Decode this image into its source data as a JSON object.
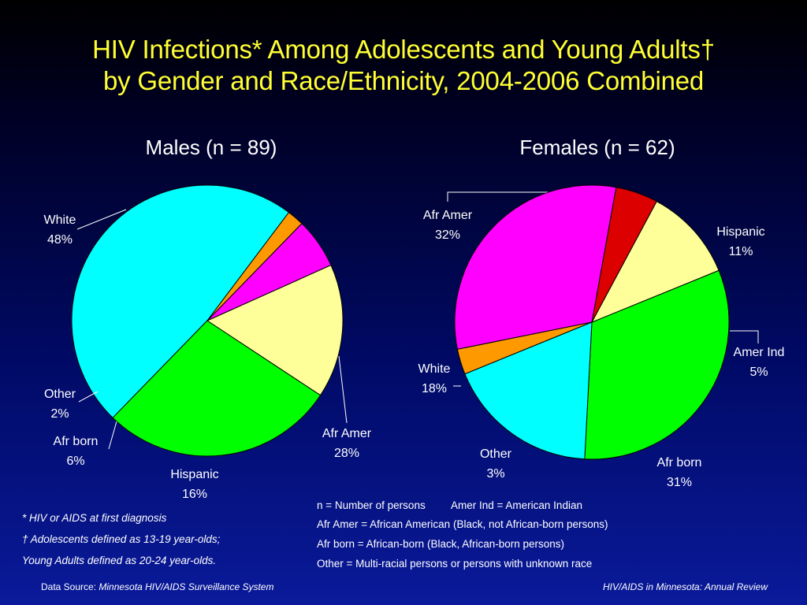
{
  "title": {
    "line1": "HIV Infections* Among Adolescents and Young Adults†",
    "line2": "by Gender and Race/Ethnicity, 2004-2006 Combined"
  },
  "chart_data": [
    {
      "type": "pie",
      "title": "Males (n = 89)",
      "slices": [
        {
          "label": "White",
          "value": 48,
          "value_label": "48%",
          "color": "#00ffff"
        },
        {
          "label": "Afr Amer",
          "value": 28,
          "value_label": "28%",
          "color": "#00ff00"
        },
        {
          "label": "Hispanic",
          "value": 16,
          "value_label": "16%",
          "color": "#ffff99"
        },
        {
          "label": "Afr born",
          "value": 6,
          "value_label": "6%",
          "color": "#ff00ff"
        },
        {
          "label": "Other",
          "value": 2,
          "value_label": "2%",
          "color": "#ff9900"
        }
      ]
    },
    {
      "type": "pie",
      "title": "Females (n = 62)",
      "slices": [
        {
          "label": "Afr Amer",
          "value": 32,
          "value_label": "32%",
          "color": "#00ff00"
        },
        {
          "label": "Hispanic",
          "value": 11,
          "value_label": "11%",
          "color": "#ffff99"
        },
        {
          "label": "Amer Ind",
          "value": 5,
          "value_label": "5%",
          "color": "#dd0000"
        },
        {
          "label": "Afr born",
          "value": 31,
          "value_label": "31%",
          "color": "#ff00ff"
        },
        {
          "label": "Other",
          "value": 3,
          "value_label": "3%",
          "color": "#ff9900"
        },
        {
          "label": "White",
          "value": 18,
          "value_label": "18%",
          "color": "#00ffff"
        }
      ]
    }
  ],
  "footnotes": {
    "n1": "* HIV or AIDS at first diagnosis",
    "n2": "† Adolescents defined as 13-19 year-olds;",
    "n3": "Young Adults defined as 20-24 year-olds."
  },
  "legend": {
    "l1a": "n = Number of persons",
    "l1b": "Amer Ind = American Indian",
    "l2": "Afr Amer = African American (Black, not African-born persons)",
    "l3": "Afr born = African-born (Black, African-born persons)",
    "l4": "Other = Multi-racial persons or persons with unknown race"
  },
  "footer": {
    "source_prefix": "Data Source: ",
    "source_name": "Minnesota HIV/AIDS Surveillance System",
    "right": "HIV/AIDS in Minnesota: Annual Review"
  }
}
